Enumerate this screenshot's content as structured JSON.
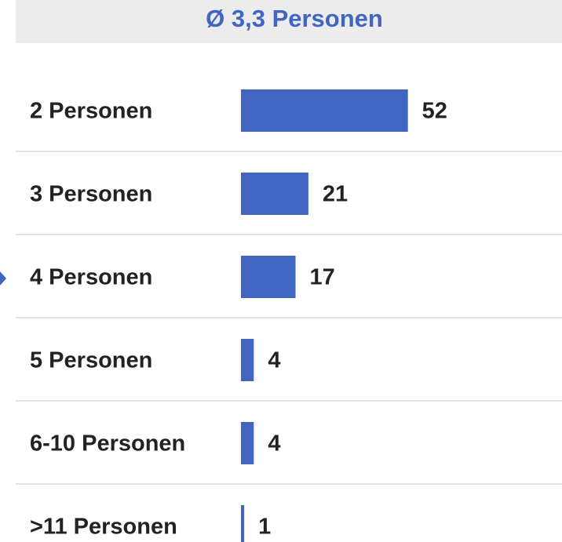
{
  "chart_data": {
    "type": "bar",
    "orientation": "horizontal",
    "title": "Ø 3,3 Personen",
    "categories": [
      "2 Personen",
      "3 Personen",
      "4 Personen",
      "5 Personen",
      "6-10 Personen",
      ">11 Personen"
    ],
    "values": [
      52,
      21,
      17,
      4,
      4,
      1
    ],
    "color": "#4066c2",
    "xlim": [
      0,
      100
    ]
  }
}
